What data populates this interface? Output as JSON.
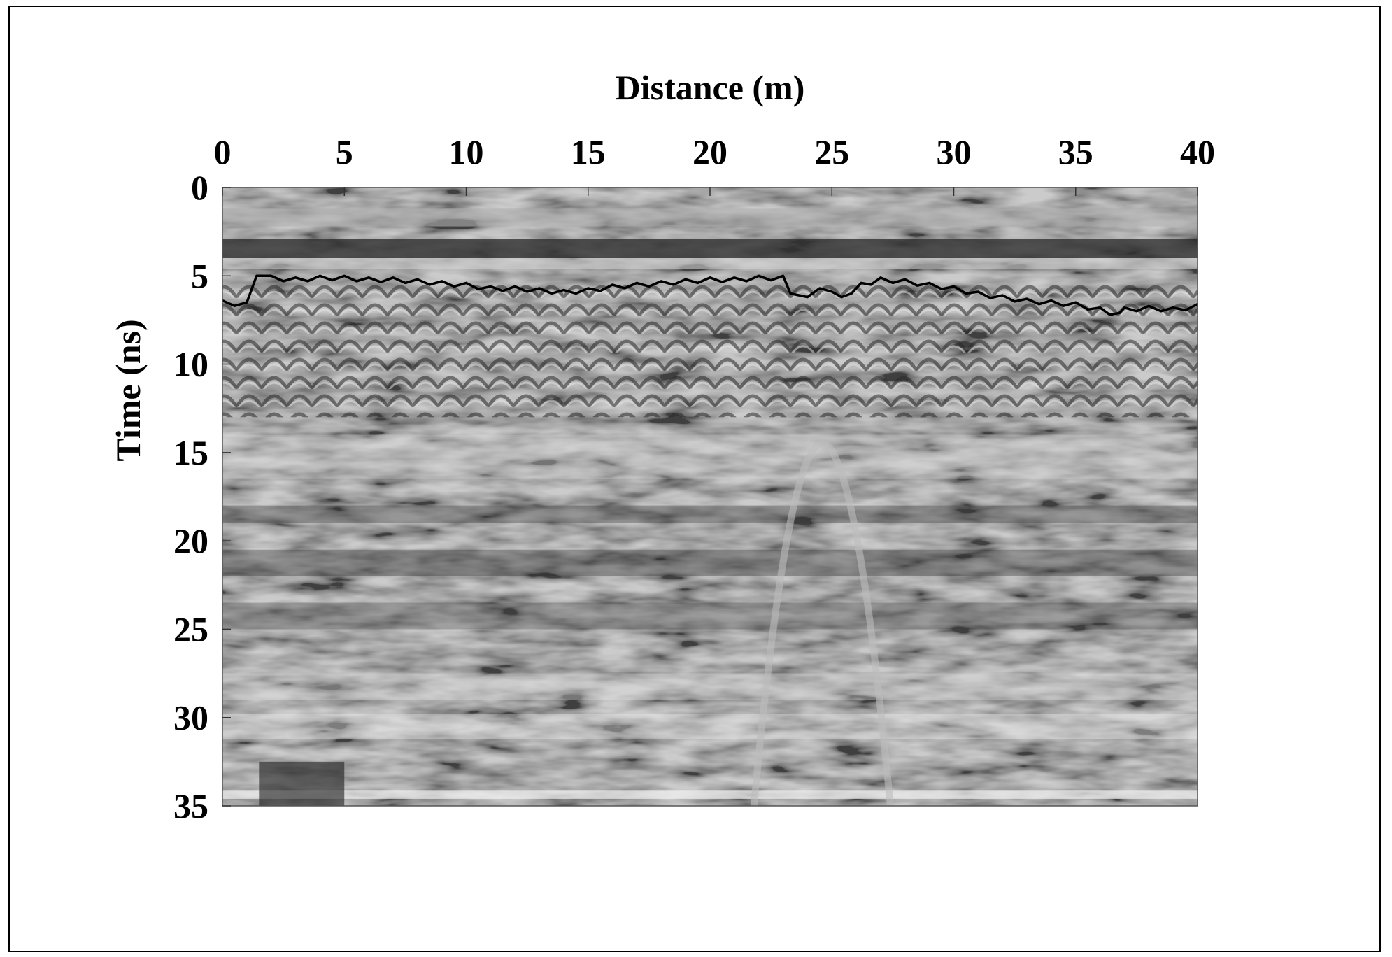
{
  "chart_data": {
    "type": "heatmap",
    "description_style": "grayscale radargram (GPR section)",
    "xlabel": "Distance (m)",
    "ylabel": "Time (ns)",
    "xlim": [
      0,
      40
    ],
    "ylim": [
      35,
      0
    ],
    "x_axis_position": "top",
    "xticks": [
      0,
      5,
      10,
      15,
      20,
      25,
      30,
      35,
      40
    ],
    "yticks": [
      0,
      5,
      10,
      15,
      20,
      25,
      30,
      35
    ],
    "xtick_labels": [
      "0",
      "5",
      "10",
      "15",
      "20",
      "25",
      "30",
      "35",
      "40"
    ],
    "ytick_labels": [
      "0",
      "5",
      "10",
      "15",
      "20",
      "25",
      "30",
      "35"
    ],
    "grid": false,
    "legend": "none",
    "colormap": "gray",
    "series": [
      {
        "type": "line",
        "color": "#000000",
        "x": [
          0,
          1,
          1.4,
          2,
          3,
          4,
          5,
          6,
          7,
          8,
          9,
          10,
          11,
          12,
          13,
          14,
          15,
          16,
          17,
          18,
          19,
          20,
          21,
          22,
          23,
          23.3,
          24,
          24.5,
          25,
          25.8,
          26.2,
          27,
          28,
          29,
          30,
          31,
          32,
          33,
          34,
          35,
          36,
          36.8,
          37,
          38,
          39,
          40
        ],
        "y": [
          6.4,
          6.5,
          5.0,
          5.0,
          5.1,
          5.0,
          5.0,
          5.1,
          5.1,
          5.2,
          5.3,
          5.4,
          5.6,
          5.6,
          5.7,
          5.8,
          5.7,
          5.5,
          5.4,
          5.3,
          5.2,
          5.1,
          5.1,
          5.0,
          5.0,
          6.0,
          6.2,
          5.7,
          5.9,
          6.0,
          5.4,
          5.1,
          5.2,
          5.4,
          5.6,
          5.9,
          6.1,
          6.3,
          6.4,
          6.5,
          6.8,
          7.1,
          6.8,
          6.7,
          6.8,
          6.6
        ]
      }
    ]
  }
}
